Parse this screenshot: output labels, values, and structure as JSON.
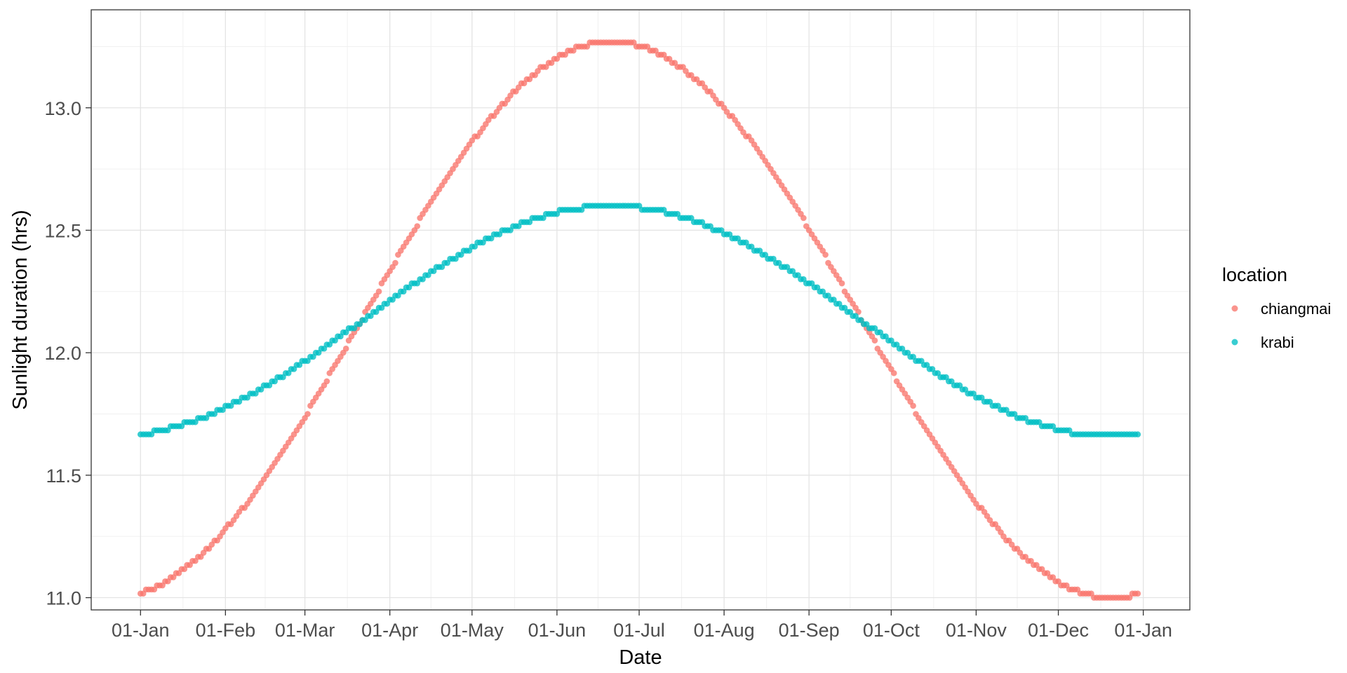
{
  "chart_data": {
    "type": "scatter",
    "title": "",
    "xlabel": "Date",
    "ylabel": "Sunlight duration (hrs)",
    "x_tick_labels": [
      "01-Jan",
      "01-Feb",
      "01-Mar",
      "01-Apr",
      "01-May",
      "01-Jun",
      "01-Jul",
      "01-Aug",
      "01-Sep",
      "01-Oct",
      "01-Nov",
      "01-Dec",
      "01-Jan"
    ],
    "x_tick_dates": [
      "2020-01-01",
      "2020-02-01",
      "2020-03-01",
      "2020-04-01",
      "2020-05-01",
      "2020-06-01",
      "2020-07-01",
      "2020-08-01",
      "2020-09-01",
      "2020-10-01",
      "2020-11-01",
      "2020-12-01",
      "2021-01-01"
    ],
    "xlim": [
      "2019-12-14",
      "2021-01-18"
    ],
    "ylim": [
      10.95,
      13.4
    ],
    "y_ticks": [
      11.0,
      11.5,
      12.0,
      12.5,
      13.0
    ],
    "y_tick_labels": [
      "11.0",
      "11.5",
      "12.0",
      "12.5",
      "13.0"
    ],
    "x_range": [
      "2020-01-01",
      "2020-12-30"
    ],
    "grid": true,
    "legend_title": "location",
    "legend_position": "right",
    "series": [
      {
        "name": "chiangmai",
        "color": "#F8766D",
        "y_min": 11.0,
        "y_max": 13.27,
        "points": [
          [
            "2020-01-01",
            11.03
          ],
          [
            "2020-01-15",
            11.11
          ],
          [
            "2020-02-01",
            11.3
          ],
          [
            "2020-02-15",
            11.51
          ],
          [
            "2020-03-01",
            11.78
          ],
          [
            "2020-03-15",
            12.01
          ],
          [
            "2020-04-01",
            12.35
          ],
          [
            "2020-04-15",
            12.6
          ],
          [
            "2020-05-01",
            12.87
          ],
          [
            "2020-05-15",
            13.05
          ],
          [
            "2020-06-01",
            13.2
          ],
          [
            "2020-06-10",
            13.25
          ],
          [
            "2020-06-21",
            13.27
          ],
          [
            "2020-07-01",
            13.24
          ],
          [
            "2020-07-15",
            13.14
          ],
          [
            "2020-08-01",
            12.93
          ],
          [
            "2020-08-15",
            12.73
          ],
          [
            "2020-09-01",
            12.45
          ],
          [
            "2020-09-15",
            12.2
          ],
          [
            "2020-10-01",
            11.88
          ],
          [
            "2020-10-15",
            11.64
          ],
          [
            "2020-11-01",
            11.39
          ],
          [
            "2020-11-15",
            11.21
          ],
          [
            "2020-12-01",
            11.06
          ],
          [
            "2020-12-10",
            11.02
          ],
          [
            "2020-12-21",
            11.0
          ],
          [
            "2020-12-30",
            11.02
          ]
        ]
      },
      {
        "name": "krabi",
        "color": "#00BFC4",
        "y_min": 11.66,
        "y_max": 12.6,
        "points": [
          [
            "2020-01-01",
            11.67
          ],
          [
            "2020-01-15",
            11.71
          ],
          [
            "2020-02-01",
            11.79
          ],
          [
            "2020-02-15",
            11.87
          ],
          [
            "2020-03-01",
            11.96
          ],
          [
            "2020-03-15",
            12.06
          ],
          [
            "2020-04-01",
            12.18
          ],
          [
            "2020-04-15",
            12.28
          ],
          [
            "2020-05-01",
            12.39
          ],
          [
            "2020-05-15",
            12.47
          ],
          [
            "2020-06-01",
            12.55
          ],
          [
            "2020-06-10",
            12.58
          ],
          [
            "2020-06-21",
            12.6
          ],
          [
            "2020-07-01",
            12.58
          ],
          [
            "2020-07-15",
            12.53
          ],
          [
            "2020-08-01",
            12.44
          ],
          [
            "2020-08-15",
            12.36
          ],
          [
            "2020-09-01",
            12.25
          ],
          [
            "2020-09-15",
            12.15
          ],
          [
            "2020-10-01",
            12.04
          ],
          [
            "2020-10-15",
            11.94
          ],
          [
            "2020-11-01",
            11.83
          ],
          [
            "2020-11-15",
            11.75
          ],
          [
            "2020-12-01",
            11.69
          ],
          [
            "2020-12-10",
            11.67
          ],
          [
            "2020-12-21",
            11.66
          ],
          [
            "2020-12-30",
            11.67
          ]
        ]
      }
    ]
  }
}
